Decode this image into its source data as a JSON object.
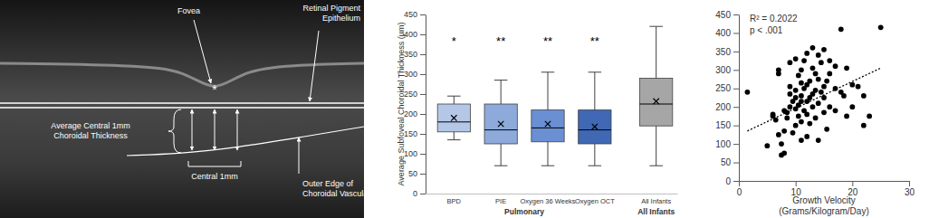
{
  "oct_panel": {
    "annotations": [
      {
        "lines": [
          "Fovea"
        ]
      },
      {
        "lines": [
          "Retinal Pigment",
          "Epithelium"
        ]
      },
      {
        "lines": [
          "Average Central 1mm",
          "Choroidal Thickness"
        ]
      },
      {
        "lines": [
          "Central 1mm"
        ]
      },
      {
        "lines": [
          "Outer Edge of",
          "Choroidal Vasculature"
        ]
      }
    ],
    "marker": "*"
  },
  "chart_data": [
    {
      "type": "box",
      "y_label": "Average Subfoveal Choroidal Thickness (µm)",
      "categories": [
        "BPD",
        "PIE",
        "Oxygen 36 Weeks",
        "Oxygen OCT",
        "All Infants"
      ],
      "groups": [
        {
          "label": "Pulmonary",
          "count": 4
        },
        {
          "label": "All Infants",
          "count": 1
        }
      ],
      "min": [
        135,
        70,
        70,
        70,
        70
      ],
      "q1": [
        155,
        125,
        130,
        125,
        170
      ],
      "median": [
        180,
        160,
        165,
        160,
        225
      ],
      "q3": [
        225,
        225,
        210,
        210,
        290
      ],
      "max": [
        245,
        285,
        305,
        305,
        420
      ],
      "mean": [
        190,
        175,
        175,
        168,
        232
      ],
      "significance": [
        "*",
        "**",
        "**",
        "**",
        null
      ],
      "colors": [
        "#b4c7e7",
        "#8eaadb",
        "#6a8fd3",
        "#4068b4",
        "#a6a6a6"
      ],
      "ylim": [
        0,
        450
      ],
      "yticks": [
        0,
        50,
        100,
        150,
        200,
        250,
        300,
        350,
        400,
        450
      ]
    },
    {
      "type": "scatter",
      "x_label": [
        "Growth Velocity",
        "(Grams/Kilogram/Day)"
      ],
      "annotations": [
        "R² = 0.2022",
        "p < .001"
      ],
      "color": "#000000",
      "marker": "circle",
      "x": [
        1.5,
        5,
        6,
        6,
        6.5,
        7,
        7,
        7,
        7.5,
        7.5,
        8,
        8,
        8,
        8.5,
        8.5,
        9,
        9,
        9,
        9,
        9.5,
        9.5,
        10,
        10,
        10,
        10,
        10,
        10.5,
        10.5,
        10.5,
        11,
        11,
        11,
        11,
        11,
        11,
        11.5,
        11.5,
        11.5,
        12,
        12,
        12,
        12,
        12,
        12.5,
        12.5,
        12.5,
        13,
        13,
        13,
        13,
        13.5,
        13.5,
        13.5,
        14,
        14,
        14,
        14,
        14.5,
        14.5,
        15,
        15,
        15,
        15,
        15.5,
        15.5,
        16,
        16,
        16,
        17,
        17,
        17,
        18,
        18,
        18.5,
        19,
        19,
        20,
        20,
        21,
        22,
        22,
        23,
        25
      ],
      "y": [
        240,
        95,
        175,
        180,
        165,
        125,
        290,
        300,
        100,
        70,
        75,
        135,
        190,
        170,
        185,
        200,
        235,
        255,
        320,
        130,
        215,
        150,
        195,
        225,
        245,
        330,
        175,
        205,
        285,
        110,
        160,
        215,
        230,
        265,
        300,
        190,
        250,
        325,
        120,
        180,
        215,
        260,
        345,
        155,
        225,
        270,
        200,
        235,
        305,
        360,
        170,
        245,
        290,
        110,
        210,
        275,
        340,
        240,
        320,
        185,
        225,
        255,
        355,
        140,
        270,
        200,
        290,
        325,
        190,
        250,
        310,
        410,
        240,
        230,
        175,
        305,
        200,
        260,
        255,
        150,
        230,
        175,
        415
      ],
      "trendline": {
        "x": [
          1.5,
          25
        ],
        "y": [
          135,
          305
        ],
        "line_style": "dotted"
      },
      "xlim": [
        0,
        30
      ],
      "xticks": [
        0,
        10,
        20,
        30
      ],
      "ylim": [
        0,
        450
      ],
      "yticks": [
        0,
        50,
        100,
        150,
        200,
        250,
        300,
        350,
        400,
        450
      ]
    }
  ]
}
